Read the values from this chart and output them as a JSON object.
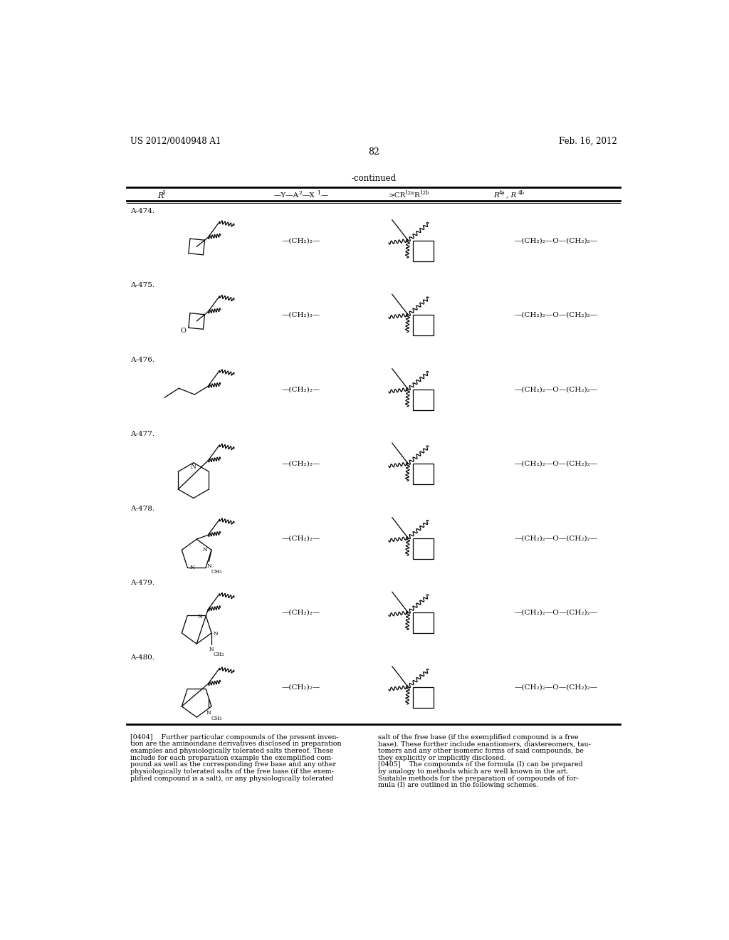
{
  "page_number": "82",
  "patent_number": "US 2012/0040948 A1",
  "patent_date": "Feb. 16, 2012",
  "continued_label": "-continued",
  "rows": [
    {
      "id": "A-474.",
      "r1_type": "cyclobutyl"
    },
    {
      "id": "A-475.",
      "r1_type": "oxetanyl"
    },
    {
      "id": "A-476.",
      "r1_type": "propyl"
    },
    {
      "id": "A-477.",
      "r1_type": "pyridyl"
    },
    {
      "id": "A-478.",
      "r1_type": "methylimidazolyl"
    },
    {
      "id": "A-479.",
      "r1_type": "methylpyrazolyl"
    },
    {
      "id": "A-480.",
      "r1_type": "methylpyrrolyl"
    }
  ],
  "col2_text": "—(CH₂)₂—",
  "col4_text": "—(CH₂)₂—O—(CH₂)₂—",
  "footer_left": [
    "[0404]    Further particular compounds of the present inven-",
    "tion are the aminoindane derivatives disclosed in preparation",
    "examples and physiologically tolerated salts thereof. These",
    "include for each preparation example the exemplified com-",
    "pound as well as the corresponding free base and any other",
    "physiologically tolerated salts of the free base (if the exem-",
    "plified compound is a salt), or any physiologically tolerated"
  ],
  "footer_right": [
    "salt of the free base (if the exemplified compound is a free",
    "base). These further include enantiomers, diastereomers, tau-",
    "tomers and any other isomeric forms of said compounds, be",
    "they explicitly or implicitly disclosed.",
    "[0405]    The compounds of the formula (I) can be prepared",
    "by analogy to methods which are well known in the art.",
    "Suitable methods for the preparation of compounds of for-",
    "mula (I) are outlined in the following schemes."
  ]
}
